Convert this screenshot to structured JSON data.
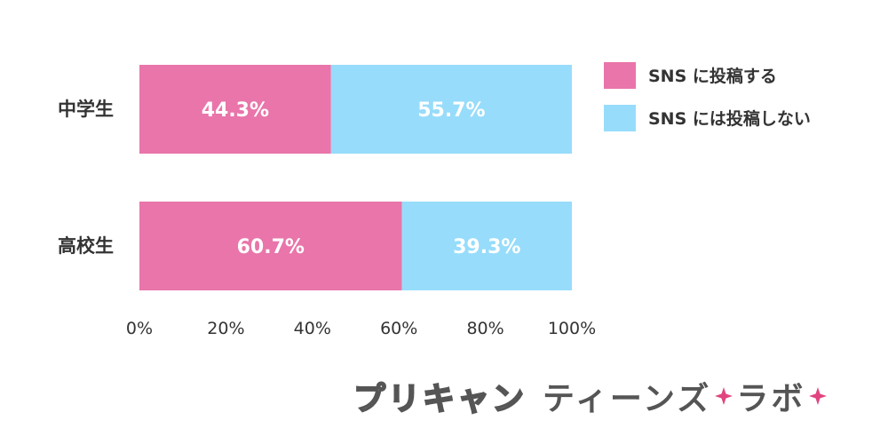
{
  "chart_data": {
    "type": "bar",
    "orientation": "horizontal",
    "stacked": true,
    "categories": [
      "中学生",
      "高校生"
    ],
    "series": [
      {
        "name": "SNS に投稿する",
        "values": [
          44.3,
          60.7
        ],
        "color": "#e975aa"
      },
      {
        "name": "SNS には投稿しない",
        "values": [
          55.7,
          39.3
        ],
        "color": "#97dcfb"
      }
    ],
    "xlim": [
      0,
      100
    ],
    "ticks": [
      0,
      20,
      40,
      60,
      80,
      100
    ],
    "tick_suffix": "%",
    "value_suffix": "%",
    "grid": false,
    "legend_position": "right"
  },
  "branding": {
    "logo_part1": "プリキャン",
    "logo_part2": "ティーンズ",
    "logo_part3": "ラボ",
    "star_color": "#e0457f"
  }
}
